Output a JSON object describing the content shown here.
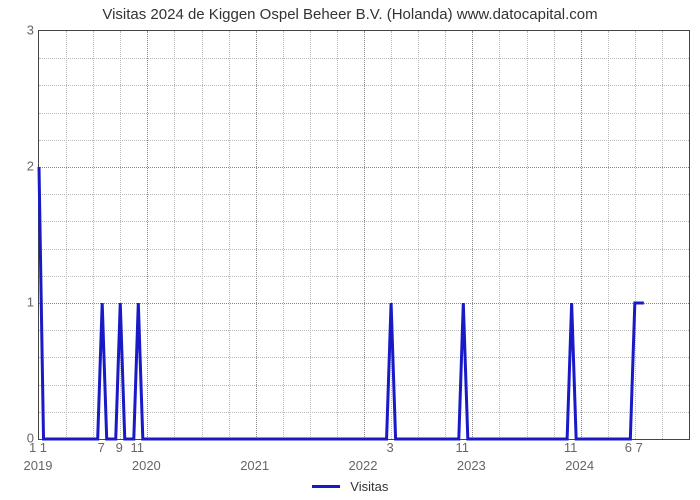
{
  "chart": {
    "type": "line",
    "title": "Visitas 2024 de Kiggen Ospel Beheer B.V. (Holanda) www.datocapital.com",
    "title_fontsize": 15,
    "title_color": "#333333",
    "background_color": "#ffffff",
    "plot_border_color": "#444444",
    "grid_color": "#888888",
    "line_color": "#1919c7",
    "line_width": 3,
    "ylim": [
      0,
      3
    ],
    "y_ticks": [
      0,
      1,
      2,
      3
    ],
    "y_minor_count": 4,
    "x_domain_months": 72,
    "x_start_month": "2019-01",
    "x_major_gridlines_at_months": [
      0,
      12,
      24,
      36,
      48,
      60,
      72
    ],
    "x_major_year_labels": [
      {
        "month_index": 0,
        "label": "2019"
      },
      {
        "month_index": 12,
        "label": "2020"
      },
      {
        "month_index": 24,
        "label": "2021"
      },
      {
        "month_index": 36,
        "label": "2022"
      },
      {
        "month_index": 48,
        "label": "2023"
      },
      {
        "month_index": 60,
        "label": "2024"
      }
    ],
    "x_small_tick_labels": [
      {
        "month_index": 0,
        "label": "1 1"
      },
      {
        "month_index": 7,
        "label": "7"
      },
      {
        "month_index": 9,
        "label": "9"
      },
      {
        "month_index": 11,
        "label": "11"
      },
      {
        "month_index": 39,
        "label": "3"
      },
      {
        "month_index": 47,
        "label": "11"
      },
      {
        "month_index": 59,
        "label": "11"
      },
      {
        "month_index": 66,
        "label": "6 7"
      }
    ],
    "data_points": [
      {
        "x": 0,
        "y": 2
      },
      {
        "x": 0.5,
        "y": 0
      },
      {
        "x": 6.5,
        "y": 0
      },
      {
        "x": 7,
        "y": 1
      },
      {
        "x": 7.5,
        "y": 0
      },
      {
        "x": 8.5,
        "y": 0
      },
      {
        "x": 9,
        "y": 1
      },
      {
        "x": 9.5,
        "y": 0
      },
      {
        "x": 10.5,
        "y": 0
      },
      {
        "x": 11,
        "y": 1
      },
      {
        "x": 11.5,
        "y": 0
      },
      {
        "x": 38.5,
        "y": 0
      },
      {
        "x": 39,
        "y": 1
      },
      {
        "x": 39.5,
        "y": 0
      },
      {
        "x": 46.5,
        "y": 0
      },
      {
        "x": 47,
        "y": 1
      },
      {
        "x": 47.5,
        "y": 0
      },
      {
        "x": 58.5,
        "y": 0
      },
      {
        "x": 59,
        "y": 1
      },
      {
        "x": 59.5,
        "y": 0
      },
      {
        "x": 65.5,
        "y": 0
      },
      {
        "x": 66,
        "y": 1
      },
      {
        "x": 67,
        "y": 1
      }
    ],
    "legend": {
      "label": "Visitas",
      "color": "#1919c7"
    },
    "x_vertical_gridlines_month_step": 3,
    "axis_label_color": "#666666",
    "axis_label_fontsize": 13
  }
}
